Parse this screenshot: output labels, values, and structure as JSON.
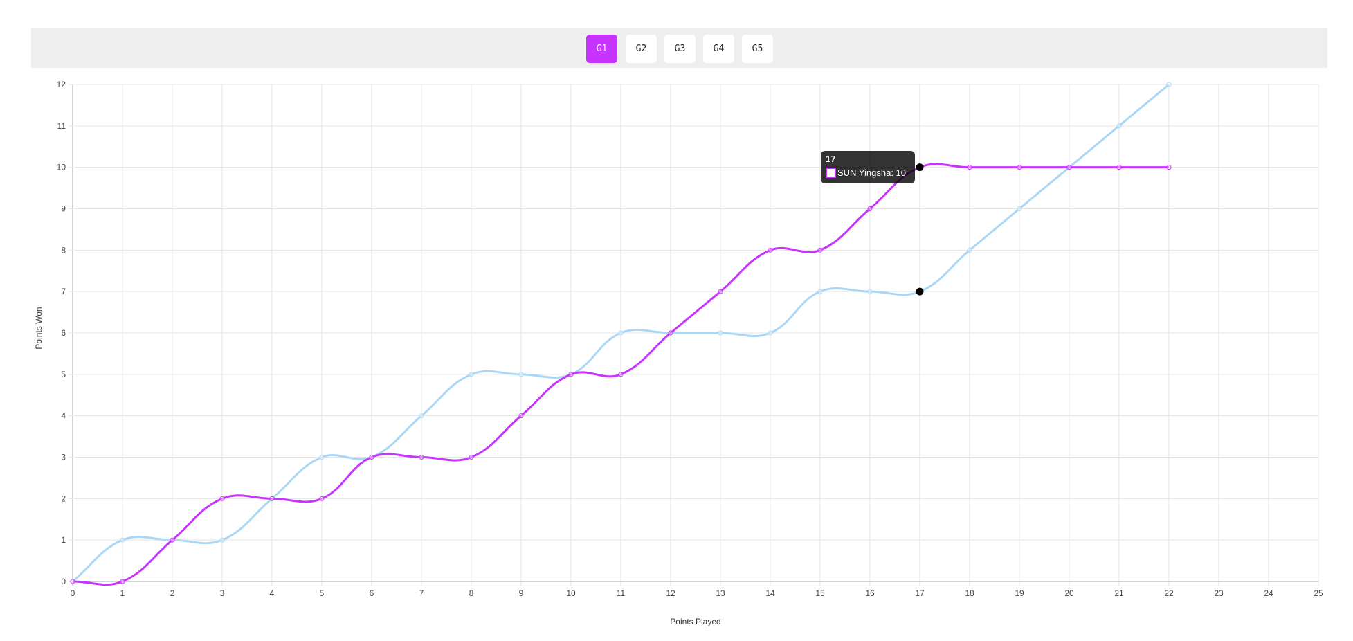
{
  "game_tabs": [
    {
      "label": "G1",
      "active": true
    },
    {
      "label": "G2",
      "active": false
    },
    {
      "label": "G3",
      "active": false
    },
    {
      "label": "G4",
      "active": false
    },
    {
      "label": "G5",
      "active": false
    }
  ],
  "colors": {
    "accent": "#c733ff",
    "series_purple": "#c733ff",
    "series_blue": "#aad7f5"
  },
  "chart_data": {
    "type": "line",
    "xlabel": "Points Played",
    "ylabel": "Points Won",
    "xlim": [
      0,
      25
    ],
    "ylim": [
      0,
      12
    ],
    "x_ticks": [
      0,
      1,
      2,
      3,
      4,
      5,
      6,
      7,
      8,
      9,
      10,
      11,
      12,
      13,
      14,
      15,
      16,
      17,
      18,
      19,
      20,
      21,
      22,
      23,
      24,
      25
    ],
    "y_ticks": [
      0,
      1,
      2,
      3,
      4,
      5,
      6,
      7,
      8,
      9,
      10,
      11,
      12
    ],
    "grid": true,
    "x": [
      0,
      1,
      2,
      3,
      4,
      5,
      6,
      7,
      8,
      9,
      10,
      11,
      12,
      13,
      14,
      15,
      16,
      17,
      18,
      19,
      20,
      21,
      22
    ],
    "series": [
      {
        "name": "SUN Yingsha",
        "color": "#c733ff",
        "values": [
          0,
          0,
          1,
          2,
          2,
          2,
          3,
          3,
          3,
          4,
          5,
          5,
          6,
          7,
          8,
          8,
          9,
          10,
          10,
          10,
          10,
          10,
          10
        ]
      },
      {
        "color": "#aad7f5",
        "values": [
          0,
          1,
          1,
          1,
          2,
          3,
          3,
          4,
          5,
          5,
          5,
          6,
          6,
          6,
          6,
          7,
          7,
          7,
          8,
          9,
          10,
          11,
          12
        ]
      }
    ],
    "tooltip": {
      "title": "17",
      "label": "SUN Yingsha: 10"
    },
    "hovered_x": 17
  }
}
